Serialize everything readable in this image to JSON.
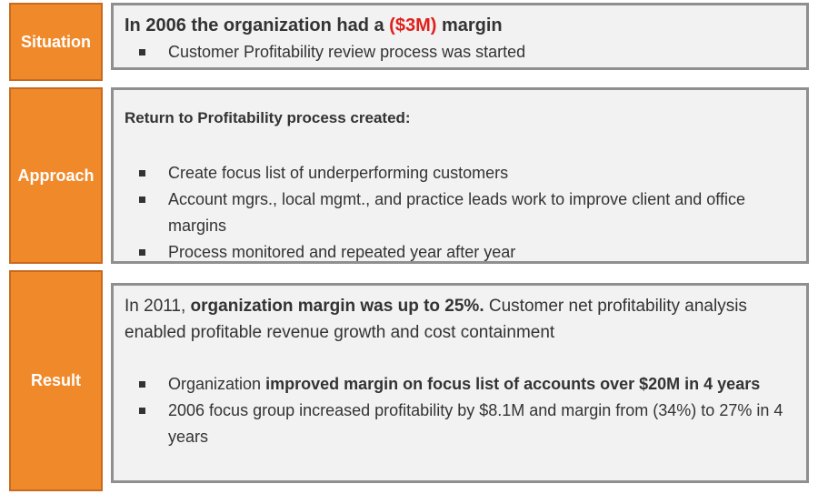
{
  "sections": [
    {
      "label": "Situation",
      "heading": [
        "In 2006 the organization had a ",
        "($3M)",
        " margin"
      ],
      "bullets": [
        [
          "Customer Profitability review process was started"
        ]
      ]
    },
    {
      "label": "Approach",
      "heading": [
        "Return to Profitability process created:"
      ],
      "bullets": [
        [
          "Create focus list of underperforming customers"
        ],
        [
          "Account mgrs., local mgmt., and practice leads work to improve client and office margins"
        ],
        [
          "Process monitored and repeated year after year"
        ]
      ]
    },
    {
      "label": "Result",
      "heading": [
        "In 2011, ",
        "organization margin was up to 25%.",
        " Customer net profitability analysis enabled profitable revenue growth and cost containment"
      ],
      "bullets": [
        [
          "Organization ",
          "improved margin on focus list of accounts over $20M in 4 years"
        ],
        [
          "2006 focus group increased profitability by $8.1M and margin from (34%) to 27% in 4 years"
        ]
      ]
    }
  ]
}
